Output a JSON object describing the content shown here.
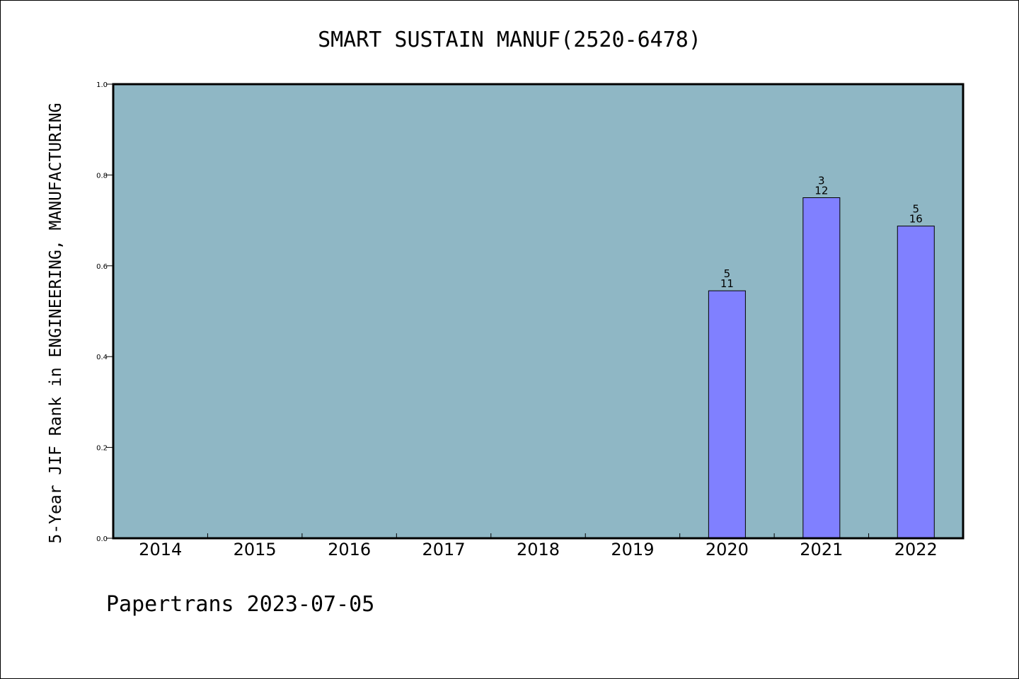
{
  "footer": "Papertrans 2023-07-05",
  "colors": {
    "plot_background": "#8fb7c5",
    "bar_fill": "#8080ff",
    "axis": "#000000"
  },
  "chart_data": {
    "type": "bar",
    "title": "SMART SUSTAIN MANUF(2520-6478)",
    "xlabel": "",
    "ylabel": "5-Year JIF Rank in ENGINEERING, MANUFACTURING",
    "ylim": [
      0.0,
      1.0
    ],
    "yticks": [
      "0.0",
      "0.2",
      "0.4",
      "0.6",
      "0.8",
      "1.0"
    ],
    "grid": false,
    "categories": [
      "2014",
      "2015",
      "2016",
      "2017",
      "2018",
      "2019",
      "2020",
      "2021",
      "2022"
    ],
    "values": [
      null,
      null,
      null,
      null,
      null,
      null,
      0.545,
      0.75,
      0.6875
    ],
    "rank_labels": [
      null,
      null,
      null,
      null,
      null,
      null,
      "5",
      "3",
      "5"
    ],
    "total_labels": [
      null,
      null,
      null,
      null,
      null,
      null,
      "11",
      "12",
      "16"
    ]
  }
}
